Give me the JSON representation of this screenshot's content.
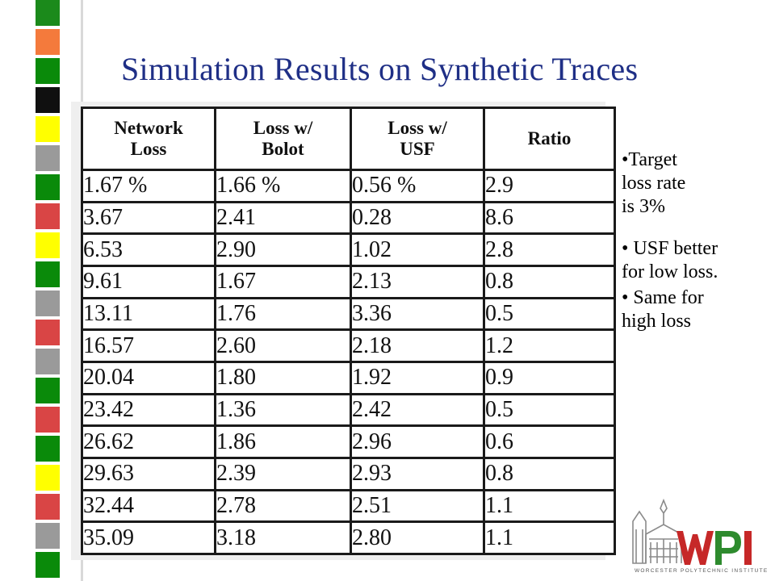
{
  "slide": {
    "title": "Simulation Results on Synthetic Traces"
  },
  "table": {
    "headers": [
      [
        "Network",
        "Loss"
      ],
      [
        "Loss w/",
        "Bolot"
      ],
      [
        "Loss w/",
        "USF"
      ],
      [
        "Ratio",
        ""
      ]
    ],
    "rows": [
      [
        "1.67 %",
        "1.66 %",
        "0.56 %",
        "2.9"
      ],
      [
        "3.67",
        "2.41",
        "0.28",
        "8.6"
      ],
      [
        "6.53",
        "2.90",
        "1.02",
        "2.8"
      ],
      [
        "9.61",
        "1.67",
        "2.13",
        "0.8"
      ],
      [
        "13.11",
        "1.76",
        "3.36",
        "0.5"
      ],
      [
        "16.57",
        "2.60",
        "2.18",
        "1.2"
      ],
      [
        "20.04",
        "1.80",
        "1.92",
        "0.9"
      ],
      [
        "23.42",
        "1.36",
        "2.42",
        "0.5"
      ],
      [
        "26.62",
        "1.86",
        "2.96",
        "0.6"
      ],
      [
        "29.63",
        "2.39",
        "2.93",
        "0.8"
      ],
      [
        "32.44",
        "2.78",
        "2.51",
        "1.1"
      ],
      [
        "35.09",
        "3.18",
        "2.80",
        "1.1"
      ]
    ]
  },
  "notes": {
    "note1_lines": [
      "•Target",
      "loss rate",
      "is 3%"
    ],
    "note2_lines": [
      "• USF better",
      "for low loss."
    ],
    "note3_lines": [
      "• Same for",
      "high loss"
    ]
  },
  "logo": {
    "text": "WPI",
    "caption": "WORCESTER POLYTECHNIC INSTITUTE",
    "colors": {
      "red": "#c62828",
      "green": "#2e8b2e"
    }
  },
  "strip_colors": [
    "#1b8a1b",
    "#f47a3c",
    "#0a8a0a",
    "#101010",
    "#ffff00",
    "#9a9a9a",
    "#0a8a0a",
    "#d94545",
    "#ffff00",
    "#0a8a0a",
    "#9a9a9a",
    "#d94545",
    "#9a9a9a",
    "#0a8a0a",
    "#d94545",
    "#0a8a0a",
    "#ffff00",
    "#d94545",
    "#9a9a9a",
    "#0a8a0a"
  ],
  "colors": {
    "title": "#1f2f86",
    "table_border": "#1a1a1a"
  }
}
